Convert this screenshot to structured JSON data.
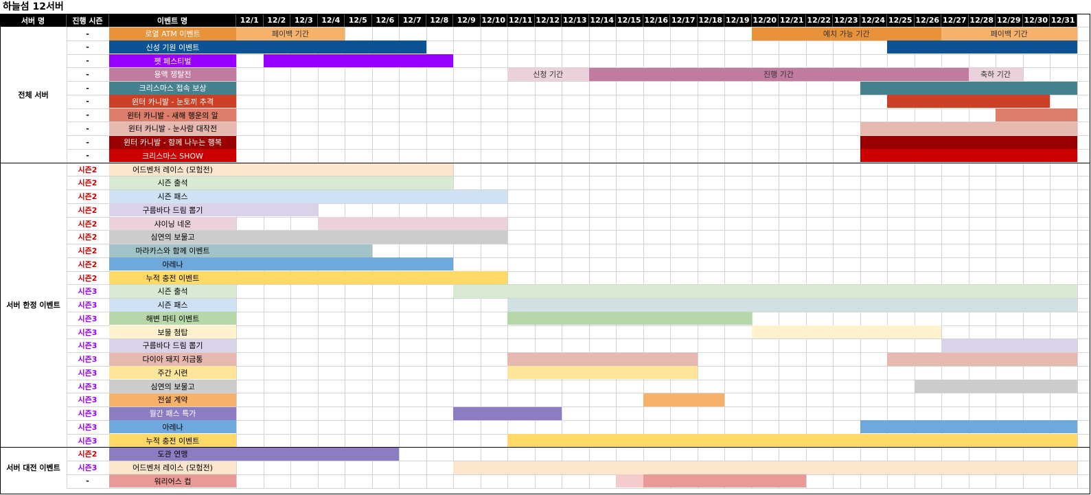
{
  "sheet": {
    "title": "하늘섬 12서버"
  },
  "headers": {
    "server": "서버 명",
    "season": "진행 시즌",
    "event": "이벤트 명"
  },
  "dates": [
    "12/1",
    "12/2",
    "12/3",
    "12/4",
    "12/5",
    "12/6",
    "12/7",
    "12/8",
    "12/9",
    "12/10",
    "12/11",
    "12/12",
    "12/13",
    "12/14",
    "12/15",
    "12/16",
    "12/17",
    "12/18",
    "12/19",
    "12/20",
    "12/21",
    "12/22",
    "12/23",
    "12/24",
    "12/25",
    "12/26",
    "12/27",
    "12/28",
    "12/29",
    "12/30",
    "12/31"
  ],
  "groups": [
    {
      "label": "전체 서버",
      "start": 0,
      "count": 10
    },
    {
      "label": "서버 한정 이벤트",
      "start": 10,
      "count": 21
    },
    {
      "label": "서버 대전 이벤트",
      "start": 31,
      "count": 3
    }
  ],
  "rows": [
    {
      "season": "-",
      "name": "로열 ATM 이벤트",
      "color": "#e8923a",
      "text": "#ffffff",
      "bars": [
        {
          "from": 1,
          "to": 4,
          "color": "#f6b26b",
          "label": "페이백 기간"
        },
        {
          "from": 20,
          "to": 26,
          "color": "#e8923a",
          "label": "예치 가능 기간"
        },
        {
          "from": 27,
          "to": 31,
          "color": "#f6b26b",
          "label": "페이백 기간"
        }
      ]
    },
    {
      "season": "-",
      "name": "신성 기원 이벤트",
      "color": "#0b5394",
      "text": "#ffffff",
      "bars": [
        {
          "from": 1,
          "to": 7,
          "color": "#0b5394",
          "label": ""
        },
        {
          "from": 25,
          "to": 31,
          "color": "#0b5394",
          "label": ""
        }
      ]
    },
    {
      "season": "-",
      "name": "펫 페스티벌",
      "color": "#9900ff",
      "text": "#ffffff",
      "bars": [
        {
          "from": 2,
          "to": 8,
          "color": "#9900ff",
          "label": ""
        }
      ]
    },
    {
      "season": "-",
      "name": "용맥 쟁탈전",
      "color": "#c27ba0",
      "text": "#ffffff",
      "bars": [
        {
          "from": 11,
          "to": 13,
          "color": "#ead1dc",
          "label": "신청 기간"
        },
        {
          "from": 14,
          "to": 27,
          "color": "#c27ba0",
          "label": "진행 기간"
        },
        {
          "from": 28,
          "to": 29,
          "color": "#ead1dc",
          "label": "축하 기간"
        }
      ]
    },
    {
      "season": "-",
      "name": "크리스마스 접속 보상",
      "color": "#45818e",
      "text": "#ffffff",
      "bars": [
        {
          "from": 24,
          "to": 31,
          "color": "#45818e",
          "label": ""
        }
      ]
    },
    {
      "season": "-",
      "name": "윈터 카니발 - 눈토끼 추격",
      "color": "#cc4125",
      "text": "#ffffff",
      "bars": [
        {
          "from": 25,
          "to": 30,
          "color": "#cc4125",
          "label": ""
        }
      ]
    },
    {
      "season": "-",
      "name": "윈터 카니발 - 새해 행운의 알",
      "color": "#dd7e6b",
      "text": "#000000",
      "bars": [
        {
          "from": 29,
          "to": 31,
          "color": "#dd7e6b",
          "label": ""
        }
      ]
    },
    {
      "season": "-",
      "name": "윈터 카니발 - 눈사람 대작전",
      "color": "#e6b8af",
      "text": "#000000",
      "bars": [
        {
          "from": 24,
          "to": 31,
          "color": "#e6b8af",
          "label": ""
        }
      ]
    },
    {
      "season": "-",
      "name": "윈터 카니발 - 함께 나누는 행복",
      "color": "#990000",
      "text": "#ffffff",
      "bars": [
        {
          "from": 24,
          "to": 31,
          "color": "#990000",
          "label": ""
        }
      ]
    },
    {
      "season": "-",
      "name": "크리스마스 SHOW",
      "color": "#cc0000",
      "text": "#ffffff",
      "bars": [
        {
          "from": 24,
          "to": 31,
          "color": "#cc0000",
          "label": ""
        }
      ]
    },
    {
      "season": "시즌2",
      "name": "어드벤처 레이스 (모험전)",
      "color": "#fce5cd",
      "text": "#000000",
      "bars": [
        {
          "from": 1,
          "to": 8,
          "color": "#fce5cd",
          "label": ""
        }
      ]
    },
    {
      "season": "시즌2",
      "name": "시즌 출석",
      "color": "#d9ead3",
      "text": "#000000",
      "bars": [
        {
          "from": 1,
          "to": 8,
          "color": "#d9ead3",
          "label": ""
        }
      ]
    },
    {
      "season": "시즌2",
      "name": "시즌 패스",
      "color": "#cfe2f3",
      "text": "#000000",
      "bars": [
        {
          "from": 1,
          "to": 10,
          "color": "#cfe2f3",
          "label": ""
        }
      ]
    },
    {
      "season": "시즌2",
      "name": "구름바다 드림 뽑기",
      "color": "#d9d2e9",
      "text": "#000000",
      "bars": [
        {
          "from": 1,
          "to": 3,
          "color": "#d9d2e9",
          "label": ""
        }
      ]
    },
    {
      "season": "시즌2",
      "name": "샤이닝 네온",
      "color": "#ead1dc",
      "text": "#000000",
      "bars": [
        {
          "from": 4,
          "to": 10,
          "color": "#ead1dc",
          "label": ""
        }
      ]
    },
    {
      "season": "시즌2",
      "name": "심연의 보물고",
      "color": "#cccccc",
      "text": "#000000",
      "bars": [
        {
          "from": 1,
          "to": 10,
          "color": "#cccccc",
          "label": ""
        }
      ]
    },
    {
      "season": "시즌2",
      "name": "마라카스와 함께 이벤트",
      "color": "#a2c4c9",
      "text": "#000000",
      "bars": [
        {
          "from": 1,
          "to": 5,
          "color": "#a2c4c9",
          "label": ""
        }
      ]
    },
    {
      "season": "시즌2",
      "name": "아레나",
      "color": "#6fa8dc",
      "text": "#000000",
      "bars": [
        {
          "from": 1,
          "to": 8,
          "color": "#6fa8dc",
          "label": ""
        }
      ]
    },
    {
      "season": "시즌2",
      "name": "누적 충전 이벤트",
      "color": "#ffd966",
      "text": "#000000",
      "bars": [
        {
          "from": 1,
          "to": 10,
          "color": "#ffd966",
          "label": ""
        }
      ]
    },
    {
      "season": "시즌3",
      "name": "시즌 출석",
      "color": "#d9ead3",
      "text": "#000000",
      "bars": [
        {
          "from": 9,
          "to": 31,
          "color": "#d9ead3",
          "label": ""
        }
      ]
    },
    {
      "season": "시즌3",
      "name": "시즌 패스",
      "color": "#cfe2f3",
      "text": "#000000",
      "bars": [
        {
          "from": 11,
          "to": 31,
          "color": "#d0e0e3",
          "label": ""
        }
      ]
    },
    {
      "season": "시즌3",
      "name": "해변 파티 이벤트",
      "color": "#b6d7a8",
      "text": "#000000",
      "bars": [
        {
          "from": 11,
          "to": 19,
          "color": "#b6d7a8",
          "label": ""
        }
      ]
    },
    {
      "season": "시즌3",
      "name": "보물 첨탑",
      "color": "#fff2cc",
      "text": "#000000",
      "bars": [
        {
          "from": 20,
          "to": 26,
          "color": "#fff2cc",
          "label": ""
        }
      ]
    },
    {
      "season": "시즌3",
      "name": "구름바다 드림 뽑기",
      "color": "#d9d2e9",
      "text": "#000000",
      "bars": [
        {
          "from": 27,
          "to": 31,
          "color": "#d9d2e9",
          "label": ""
        }
      ]
    },
    {
      "season": "시즌3",
      "name": "다이아 돼지 저금통",
      "color": "#e6b8af",
      "text": "#000000",
      "bars": [
        {
          "from": 11,
          "to": 17,
          "color": "#e6b8af",
          "label": ""
        },
        {
          "from": 25,
          "to": 31,
          "color": "#e6b8af",
          "label": ""
        }
      ]
    },
    {
      "season": "시즌3",
      "name": "주간 시련",
      "color": "#ffe599",
      "text": "#000000",
      "bars": [
        {
          "from": 11,
          "to": 17,
          "color": "#ffe599",
          "label": ""
        }
      ]
    },
    {
      "season": "시즌3",
      "name": "심연의 보물고",
      "color": "#cccccc",
      "text": "#000000",
      "bars": [
        {
          "from": 26,
          "to": 31,
          "color": "#cccccc",
          "label": ""
        }
      ]
    },
    {
      "season": "시즌3",
      "name": "전설 계약",
      "color": "#f6b26b",
      "text": "#000000",
      "bars": [
        {
          "from": 16,
          "to": 18,
          "color": "#f6b26b",
          "label": ""
        }
      ]
    },
    {
      "season": "시즌3",
      "name": "월간 패스 특가",
      "color": "#8e7cc3",
      "text": "#ffffff",
      "bars": [
        {
          "from": 9,
          "to": 12,
          "color": "#8e7cc3",
          "label": ""
        }
      ]
    },
    {
      "season": "시즌3",
      "name": "아레나",
      "color": "#6fa8dc",
      "text": "#000000",
      "bars": [
        {
          "from": 24,
          "to": 31,
          "color": "#6fa8dc",
          "label": ""
        }
      ]
    },
    {
      "season": "시즌3",
      "name": "누적 충전 이벤트",
      "color": "#ffd966",
      "text": "#000000",
      "bars": [
        {
          "from": 11,
          "to": 31,
          "color": "#ffd966",
          "label": ""
        }
      ]
    },
    {
      "season": "시즌2",
      "name": "도관 연맹",
      "color": "#8e7cc3",
      "text": "#000000",
      "bars": [
        {
          "from": 1,
          "to": 6,
          "color": "#8e7cc3",
          "label": ""
        }
      ]
    },
    {
      "season": "시즌3",
      "name": "어드벤처 레이스 (모험전)",
      "color": "#fce5cd",
      "text": "#000000",
      "bars": [
        {
          "from": 9,
          "to": 31,
          "color": "#fce5cd",
          "label": ""
        }
      ]
    },
    {
      "season": "-",
      "name": "워리어스 컵",
      "color": "#ea9999",
      "text": "#000000",
      "bars": [
        {
          "from": 15,
          "to": 15,
          "color": "#f4cccc",
          "label": ""
        },
        {
          "from": 16,
          "to": 21,
          "color": "#ea9999",
          "label": ""
        }
      ]
    }
  ],
  "season_colors": {
    "시즌2": "#cc0000",
    "시즌3": "#9900ff",
    "-": "#000000"
  }
}
